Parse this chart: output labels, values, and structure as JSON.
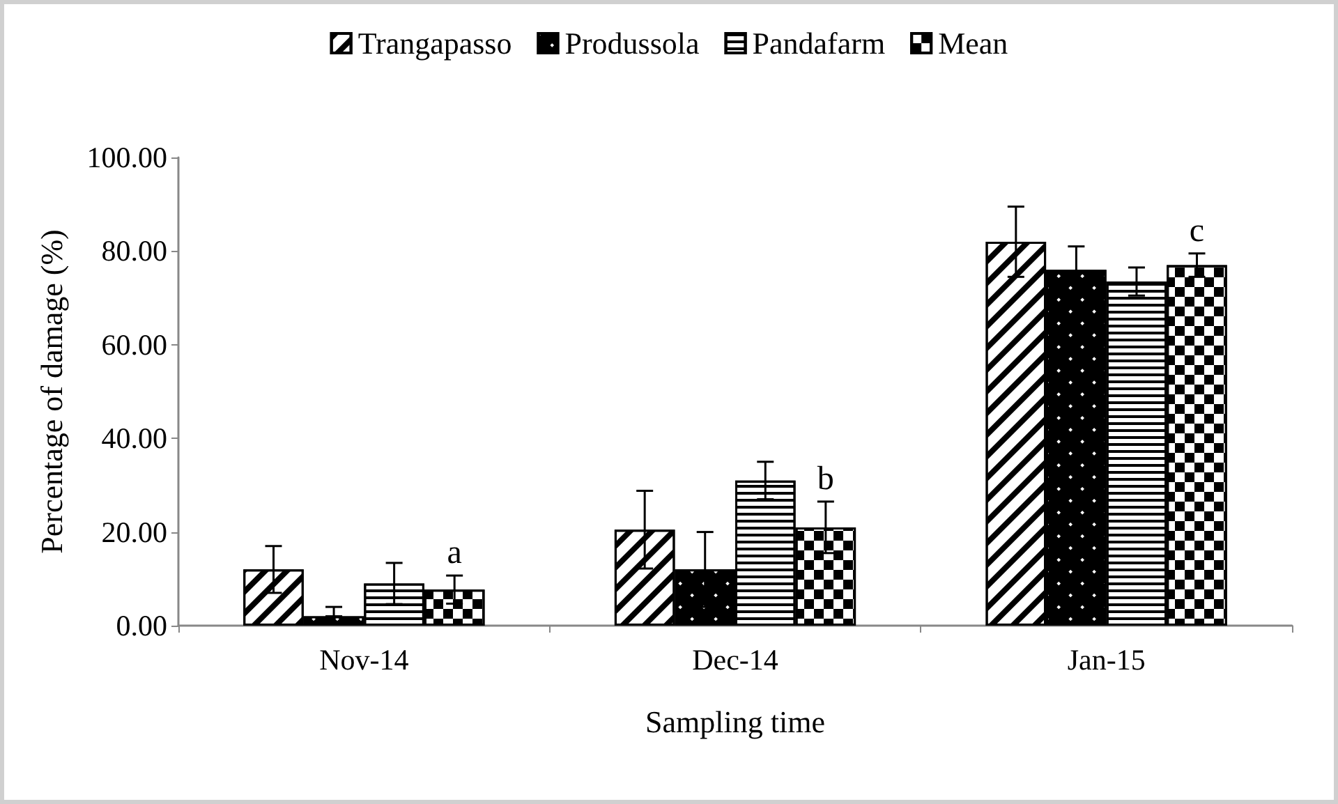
{
  "chart_data": {
    "type": "bar",
    "xlabel": "Sampling time",
    "ylabel": "Percentage of damage (%)",
    "categories": [
      "Nov-14",
      "Dec-14",
      "Jan-15"
    ],
    "series": [
      {
        "name": "Trangapasso",
        "color": "#ffffff",
        "values": [
          12,
          20.5,
          82
        ],
        "errors": [
          5,
          8.3,
          7.5
        ]
      },
      {
        "name": "Produssola",
        "color": "#000000",
        "values": [
          2,
          12,
          76
        ],
        "errors": [
          [
            2,
            4
          ],
          8,
          5
        ]
      },
      {
        "name": "Pandafarm",
        "color": "#ffffff",
        "values": [
          9,
          31,
          73.5
        ],
        "errors": [
          4.4,
          4,
          3
        ]
      },
      {
        "name": "Mean",
        "color": "#ffffff",
        "values": [
          7.7,
          21,
          77
        ],
        "errors": [
          3,
          5.5,
          2.5
        ]
      }
    ],
    "ylim": [
      0,
      100
    ],
    "yticks": [
      {
        "value": 0,
        "label": "0.00"
      },
      {
        "value": 20,
        "label": "20.00"
      },
      {
        "value": 40,
        "label": "40.00"
      },
      {
        "value": 60,
        "label": "60.00"
      },
      {
        "value": 80,
        "label": "80.00"
      },
      {
        "value": 100,
        "label": "100.00"
      }
    ],
    "annotations": [
      "a",
      "b",
      "c"
    ],
    "grid": false,
    "legend": "top"
  }
}
